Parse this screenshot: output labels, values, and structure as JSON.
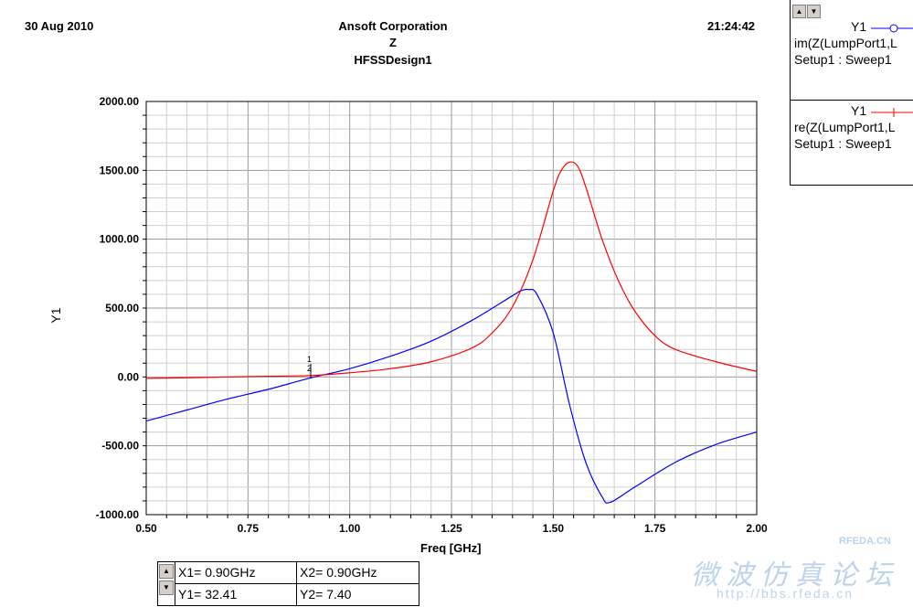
{
  "header": {
    "date": "30 Aug 2010",
    "company": "Ansoft Corporation",
    "quantity": "Z",
    "design": "HFSSDesign1",
    "time": "21:24:42"
  },
  "legend": {
    "entries": [
      {
        "y_name": "Y1",
        "trace": "im(Z(LumpPort1,L",
        "setup": "Setup1 : Sweep1",
        "color": "#0000ff",
        "marker": "circle"
      },
      {
        "y_name": "Y1",
        "trace": "re(Z(LumpPort1,L",
        "setup": "Setup1 : Sweep1",
        "color": "#ff0000",
        "marker": "plus"
      }
    ]
  },
  "markers": {
    "x1": "X1= 0.90GHz",
    "y1": "Y1=  32.41",
    "x2": "X2= 0.90GHz",
    "y2": "Y2=   7.40",
    "labels": [
      "1",
      "2"
    ]
  },
  "watermark": {
    "text1": "RFEDA.CN",
    "text2": "微波仿真论坛",
    "text3": "http://bbs.rfeda.cn"
  },
  "chart_data": {
    "type": "line",
    "xlabel": "Freq [GHz]",
    "ylabel": "Y1",
    "xlim": [
      0.5,
      2.0
    ],
    "ylim": [
      -1000,
      2000
    ],
    "xticks": [
      "0.50",
      "0.75",
      "1.00",
      "1.25",
      "1.50",
      "1.75",
      "2.00"
    ],
    "yticks": [
      "-1000.00",
      "-500.00",
      "0.00",
      "500.00",
      "1000.00",
      "1500.00",
      "2000.00"
    ],
    "grid": true,
    "legend_position": "right",
    "series": [
      {
        "name": "im(Z(LumpPort1,L",
        "color": "#0000ff",
        "x": [
          0.5,
          0.6,
          0.7,
          0.8,
          0.9,
          1.0,
          1.1,
          1.2,
          1.3,
          1.4,
          1.42,
          1.44,
          1.46,
          1.5,
          1.54,
          1.58,
          1.62,
          1.64,
          1.7,
          1.8,
          1.9,
          2.0
        ],
        "y": [
          -320,
          -240,
          -160,
          -90,
          -10,
          60,
          150,
          260,
          410,
          590,
          625,
          635,
          600,
          320,
          -200,
          -620,
          -870,
          -910,
          -800,
          -620,
          -490,
          -400
        ]
      },
      {
        "name": "re(Z(LumpPort1,L",
        "color": "#ff0000",
        "x": [
          0.5,
          0.6,
          0.7,
          0.8,
          0.9,
          1.0,
          1.1,
          1.2,
          1.3,
          1.35,
          1.4,
          1.45,
          1.5,
          1.52,
          1.54,
          1.56,
          1.58,
          1.62,
          1.66,
          1.7,
          1.75,
          1.8,
          1.9,
          2.0
        ],
        "y": [
          -10,
          -6,
          0,
          5,
          10,
          30,
          60,
          110,
          210,
          320,
          510,
          850,
          1350,
          1500,
          1560,
          1530,
          1380,
          1000,
          700,
          480,
          300,
          200,
          110,
          40
        ]
      }
    ]
  }
}
